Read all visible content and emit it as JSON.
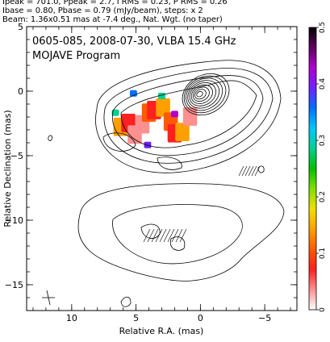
{
  "header": {
    "line1": "Ipeak = 701.0, Ppeak = 2.7, I RMS = 0.23, P RMS = 0.26",
    "line2": "Ibase = 0.80, Pbase = 0.79 (mJy/beam), steps: x 2",
    "line3": "Beam: 1.36x0.51 mas at -7.4 deg., Nat. Wgt. (no taper)"
  },
  "chart_data": {
    "type": "heatmap",
    "title": "0605-085, 2008-07-30, VLBA 15.4 GHz",
    "subtitle": "MOJAVE Program",
    "xlabel": "Relative R.A. (mas)",
    "ylabel": "Relative Declination (mas)",
    "xlim": [
      13.5,
      -7.5
    ],
    "ylim": [
      -17,
      5
    ],
    "xticks": [
      10,
      5,
      0,
      -5
    ],
    "yticks": [
      5,
      0,
      -5,
      -10,
      -15
    ],
    "colorbar": {
      "min": 0,
      "max": 0.5,
      "ticks": [
        0,
        0.1,
        0.2,
        0.3,
        0.4,
        0.5
      ],
      "colors": [
        "#ffffff",
        "#ff9090",
        "#ff2020",
        "#ff5a00",
        "#ffa000",
        "#f0e000",
        "#80e000",
        "#00c000",
        "#00d090",
        "#00c8ff",
        "#0070ff",
        "#7020ff",
        "#b000d0",
        "#600060",
        "#000000"
      ]
    },
    "core": {
      "x": -0.1,
      "y": 0.0
    },
    "polarization_patches": [
      {
        "x": 6.2,
        "y": -2.6,
        "value": 0.16
      },
      {
        "x": 5.6,
        "y": -2.3,
        "value": 0.06
      },
      {
        "x": 5.1,
        "y": -3.2,
        "value": 0.05
      },
      {
        "x": 4.5,
        "y": -2.4,
        "value": 0.04
      },
      {
        "x": 4.0,
        "y": -1.5,
        "value": 0.12
      },
      {
        "x": 3.6,
        "y": -1.3,
        "value": 0.08
      },
      {
        "x": 2.9,
        "y": -1.1,
        "value": 0.13
      },
      {
        "x": 2.3,
        "y": -2.2,
        "value": 0.1
      },
      {
        "x": 2.0,
        "y": -3.1,
        "value": 0.07
      },
      {
        "x": 1.4,
        "y": -3.0,
        "value": 0.15
      },
      {
        "x": 0.8,
        "y": -1.8,
        "value": 0.05
      },
      {
        "x": 5.2,
        "y": -0.2,
        "value": 0.35
      },
      {
        "x": 3.0,
        "y": -0.4,
        "value": 0.28
      },
      {
        "x": 4.1,
        "y": -4.2,
        "value": 0.38
      },
      {
        "x": 6.6,
        "y": -1.7,
        "value": 0.3
      },
      {
        "x": 2.0,
        "y": -1.8,
        "value": 0.42
      }
    ]
  }
}
